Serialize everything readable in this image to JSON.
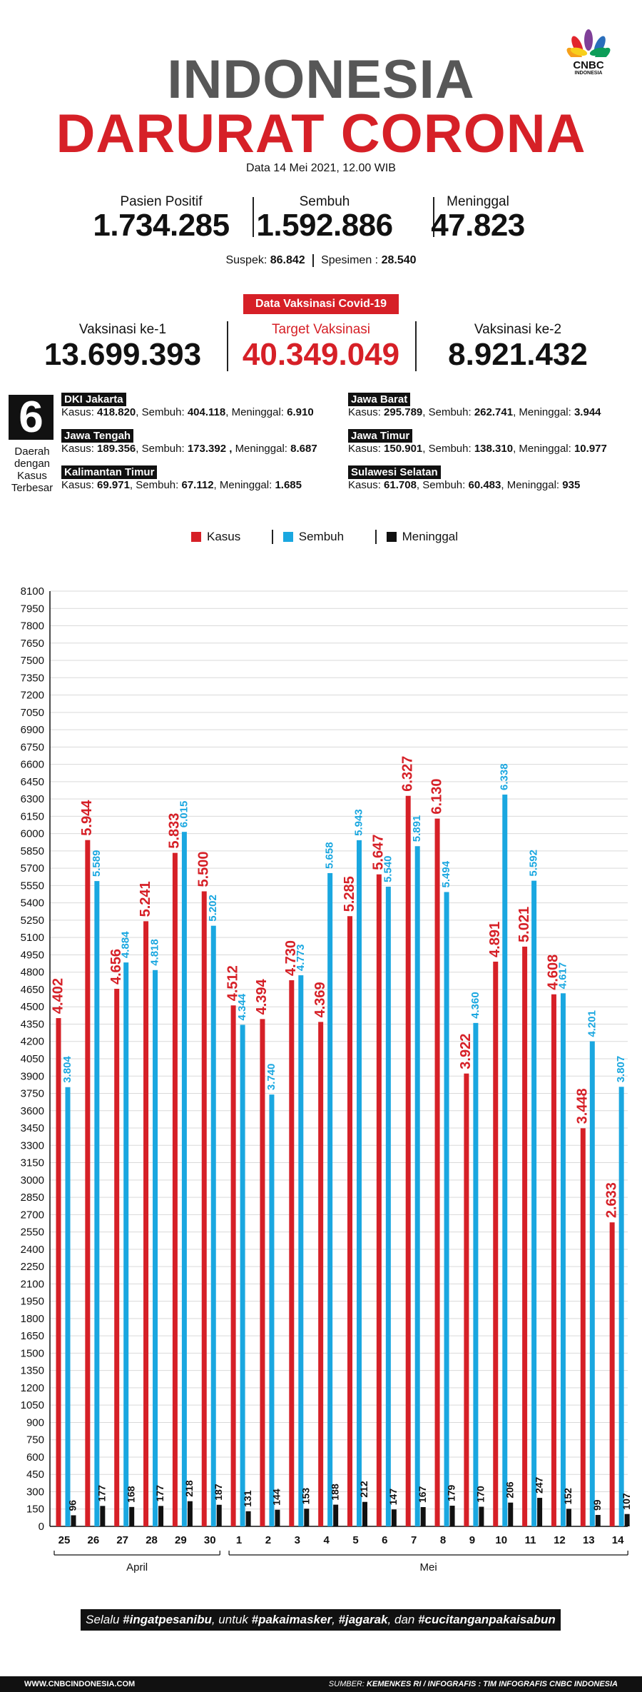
{
  "brand": {
    "logo_main": "CNBC",
    "logo_sub": "INDONESIA"
  },
  "header": {
    "title_line1": "INDONESIA",
    "title_line2": "DARURAT CORONA",
    "date": "Data 14 Mei 2021, 12.00 WIB"
  },
  "stats": {
    "positif_label": "Pasien Positif",
    "positif_value": "1.734.285",
    "sembuh_label": "Sembuh",
    "sembuh_value": "1.592.886",
    "meninggal_label": "Meninggal",
    "meninggal_value": "47.823"
  },
  "sub": {
    "suspek_label": "Suspek:",
    "suspek_value": "86.842",
    "spesimen_label": "Spesimen :",
    "spesimen_value": "28.540"
  },
  "vaksin": {
    "badge": "Data Vaksinasi Covid-19",
    "ke1_label": "Vaksinasi ke-1",
    "ke1_value": "13.699.393",
    "target_label": "Target Vaksinasi",
    "target_value": "40.349.049",
    "ke2_label": "Vaksinasi ke-2",
    "ke2_value": "8.921.432"
  },
  "regions_box": {
    "number": "6",
    "text": "Daerah dengan Kasus Terbesar"
  },
  "regions": [
    {
      "name": "DKI Jakarta",
      "kasus": "418.820",
      "sembuh": "404.118",
      "meninggal": "6.910"
    },
    {
      "name": "Jawa Barat",
      "kasus": "295.789",
      "sembuh": "262.741",
      "meninggal": "3.944"
    },
    {
      "name": "Jawa Tengah",
      "kasus": "189.356",
      "sembuh": "173.392 ,",
      "meninggal": "8.687"
    },
    {
      "name": "Jawa Timur",
      "kasus": "150.901",
      "sembuh": "138.310",
      "meninggal": "10.977"
    },
    {
      "name": "Kalimantan Timur",
      "kasus": "69.971",
      "sembuh": "67.112",
      "meninggal": "1.685"
    },
    {
      "name": "Sulawesi Selatan",
      "kasus": "61.708",
      "sembuh": "60.483",
      "meninggal": "935"
    }
  ],
  "region_labels": {
    "kasus": "Kasus:",
    "sembuh": "Sembuh:",
    "meninggal": "Meninggal:"
  },
  "colors": {
    "red": "#d62027",
    "blue": "#1aa7e0",
    "black": "#111111",
    "gray": "#575757"
  },
  "chart_data": {
    "type": "bar",
    "categories": [
      "25",
      "26",
      "27",
      "28",
      "29",
      "30",
      "1",
      "2",
      "3",
      "4",
      "5",
      "6",
      "7",
      "8",
      "9",
      "10",
      "11",
      "12",
      "13",
      "14"
    ],
    "groups": [
      {
        "label": "April",
        "from": 0,
        "to": 5
      },
      {
        "label": "Mei",
        "from": 6,
        "to": 19
      }
    ],
    "series": [
      {
        "name": "Kasus",
        "color": "#d62027",
        "values": [
          4402,
          5944,
          4656,
          5241,
          5833,
          5500,
          4512,
          4394,
          4730,
          4369,
          5285,
          5647,
          6327,
          6130,
          3922,
          4891,
          5021,
          4608,
          3448,
          2633
        ]
      },
      {
        "name": "Sembuh",
        "color": "#1aa7e0",
        "values": [
          3804,
          5589,
          4884,
          4818,
          6015,
          5202,
          4344,
          3740,
          4773,
          5658,
          5943,
          5540,
          5891,
          5494,
          4360,
          6338,
          5592,
          4617,
          4201,
          3807
        ]
      },
      {
        "name": "Meninggal",
        "color": "#111111",
        "values": [
          96,
          177,
          168,
          177,
          218,
          187,
          131,
          144,
          153,
          188,
          212,
          147,
          167,
          179,
          170,
          206,
          247,
          152,
          99,
          107
        ]
      }
    ],
    "labels": {
      "Kasus": [
        "4.402",
        "5.944",
        "4.656",
        "5.241",
        "5.833",
        "5.500",
        "4.512",
        "4.394",
        "4.730",
        "4.369",
        "5.285",
        "5.647",
        "6.327",
        "6.130",
        "3.922",
        "4.891",
        "5.021",
        "4.608",
        "3.448",
        "2.633"
      ],
      "Sembuh": [
        "3.804",
        "5.589",
        "4.884",
        "4.818",
        "6.015",
        "5.202",
        "4.344",
        "3.740",
        "4.773",
        "5.658",
        "5.943",
        "5.540",
        "5.891",
        "5.494",
        "4.360",
        "6.338",
        "5.592",
        "4.617",
        "4.201",
        "3.807"
      ],
      "Meninggal": [
        "96",
        "177",
        "168",
        "177",
        "218",
        "187",
        "131",
        "144",
        "153",
        "188",
        "212",
        "147",
        "167",
        "179",
        "170",
        "206",
        "247",
        "152",
        "99",
        "107"
      ]
    },
    "ylim": [
      0,
      8100
    ],
    "yticks": [
      0,
      150,
      300,
      450,
      600,
      750,
      900,
      1050,
      1200,
      1350,
      1500,
      1650,
      1800,
      1950,
      2100,
      2250,
      2400,
      2550,
      2700,
      2850,
      3000,
      3150,
      3300,
      3450,
      3600,
      3750,
      3900,
      4050,
      4200,
      4350,
      4500,
      4650,
      4800,
      4950,
      5100,
      5250,
      5400,
      5550,
      5700,
      5850,
      6000,
      6150,
      6300,
      6450,
      6600,
      6750,
      6900,
      7050,
      7200,
      7350,
      7500,
      7650,
      7800,
      7950,
      8100
    ],
    "ytick_labels": [
      "0",
      "150",
      "300",
      "450",
      "600",
      "750",
      "900",
      "1050",
      "1200",
      "1350",
      "1500",
      "1650",
      "1800",
      "1950",
      "2100",
      "2250",
      "2400",
      "2550",
      "2700",
      "2850",
      "3000",
      "3150",
      "3300",
      "3450",
      "3600",
      "3750",
      "3900",
      "4050",
      "4200",
      "4350",
      "4500",
      "4650",
      "4800",
      "4950",
      "5100",
      "5250",
      "5400",
      "5550",
      "5700",
      "5850",
      "6000",
      "6150",
      "6300",
      "6450",
      "6600",
      "6750",
      "6900",
      "7050",
      "7200",
      "7350",
      "7500",
      "7650",
      "7800",
      "7950",
      "8100"
    ],
    "grid": true,
    "legend": [
      "Kasus",
      "Sembuh",
      "Meninggal"
    ]
  },
  "slogan": {
    "t1": "Selalu ",
    "b1": "#ingatpesanibu",
    "t2": ", untuk ",
    "b2": "#pakaimasker",
    "t3": ", ",
    "b3": "#jagarak",
    "t4": ", dan ",
    "b4": "#cucitanganpakaisabun"
  },
  "footer": {
    "left": "WWW.CNBCINDONESIA.COM",
    "right_label": "SUMBER: ",
    "right_source": "KEMENKES RI / INFOGRAFIS : TIM INFOGRAFIS CNBC INDONESIA"
  }
}
